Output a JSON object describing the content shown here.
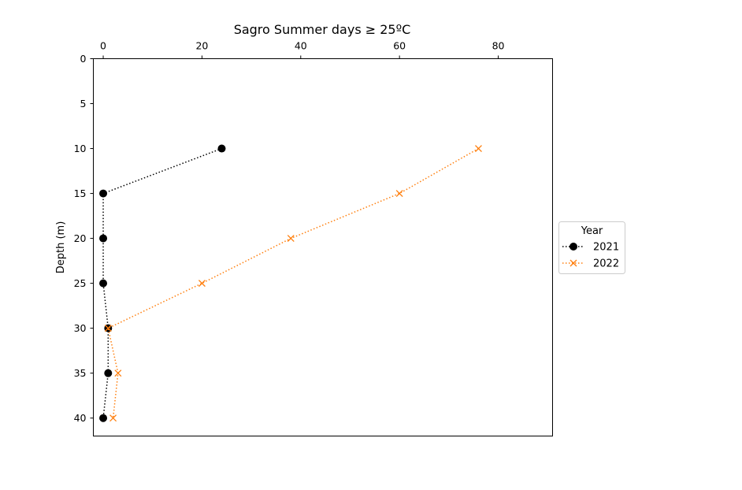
{
  "chart_data": {
    "type": "line",
    "title": "Sagro Summer days ≥ 25ºC",
    "xlabel": "",
    "ylabel": "Depth (m)",
    "x_axis_position": "top",
    "y_inverted": true,
    "xlim": [
      -2,
      91
    ],
    "ylim": [
      42,
      0
    ],
    "xticks": [
      0,
      20,
      40,
      60,
      80
    ],
    "yticks": [
      0,
      5,
      10,
      15,
      20,
      25,
      30,
      35,
      40
    ],
    "grid": false,
    "legend": {
      "title": "Year",
      "placement": "center-right-outside"
    },
    "series": [
      {
        "name": "2021",
        "color": "#000000",
        "marker": "circle",
        "linestyle": "dotted",
        "points": [
          {
            "x": 24,
            "y": 10
          },
          {
            "x": 0,
            "y": 15
          },
          {
            "x": 0,
            "y": 20
          },
          {
            "x": 0,
            "y": 25
          },
          {
            "x": 1,
            "y": 30
          },
          {
            "x": 1,
            "y": 35
          },
          {
            "x": 0,
            "y": 40
          }
        ]
      },
      {
        "name": "2022",
        "color": "#ff7f0e",
        "marker": "x",
        "linestyle": "dotted",
        "points": [
          {
            "x": 76,
            "y": 10
          },
          {
            "x": 60,
            "y": 15
          },
          {
            "x": 38,
            "y": 20
          },
          {
            "x": 20,
            "y": 25
          },
          {
            "x": 1,
            "y": 30
          },
          {
            "x": 3,
            "y": 35
          },
          {
            "x": 2,
            "y": 40
          }
        ]
      }
    ]
  }
}
